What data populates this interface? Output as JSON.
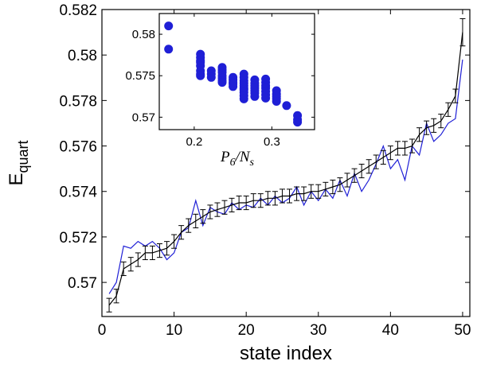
{
  "chart_data": [
    {
      "type": "line",
      "xlabel": "state index",
      "ylabel_main": "E",
      "ylabel_sub": "quart",
      "xlim": [
        0,
        51
      ],
      "ylim": [
        0.5685,
        0.582
      ],
      "xticks": [
        0,
        10,
        20,
        30,
        40,
        50
      ],
      "yticks": [
        0.57,
        0.572,
        0.574,
        0.576,
        0.578,
        0.58,
        0.582
      ],
      "colors": {
        "mean": "#000000",
        "sample": "#1f1fd6"
      },
      "x": [
        1,
        2,
        3,
        4,
        5,
        6,
        7,
        8,
        9,
        10,
        11,
        12,
        13,
        14,
        15,
        16,
        17,
        18,
        19,
        20,
        21,
        22,
        23,
        24,
        25,
        26,
        27,
        28,
        29,
        30,
        31,
        32,
        33,
        34,
        35,
        36,
        37,
        38,
        39,
        40,
        41,
        42,
        43,
        44,
        45,
        46,
        47,
        48,
        49,
        50
      ],
      "series": [
        {
          "role": "mean-with-errorbars",
          "values": [
            0.569,
            0.5694,
            0.5706,
            0.5708,
            0.571,
            0.5713,
            0.5713,
            0.5714,
            0.5715,
            0.5718,
            0.5722,
            0.5725,
            0.5727,
            0.5729,
            0.5731,
            0.5732,
            0.5733,
            0.5734,
            0.5735,
            0.5735,
            0.5736,
            0.5736,
            0.5737,
            0.5737,
            0.5738,
            0.5738,
            0.5739,
            0.5739,
            0.574,
            0.574,
            0.5741,
            0.5742,
            0.5743,
            0.5745,
            0.5747,
            0.5749,
            0.5751,
            0.5753,
            0.5755,
            0.5757,
            0.5759,
            0.5759,
            0.576,
            0.5765,
            0.5768,
            0.5769,
            0.5771,
            0.5776,
            0.5782,
            0.581
          ],
          "errors": [
            0.0003,
            0.0003,
            0.0003,
            0.0003,
            0.0003,
            0.0003,
            0.0003,
            0.0003,
            0.0003,
            0.0003,
            0.0003,
            0.0003,
            0.0003,
            0.0003,
            0.0003,
            0.0003,
            0.0003,
            0.0003,
            0.0003,
            0.0003,
            0.0003,
            0.0003,
            0.0003,
            0.0003,
            0.0003,
            0.0003,
            0.0003,
            0.0003,
            0.0003,
            0.0003,
            0.0003,
            0.0003,
            0.0003,
            0.0003,
            0.0003,
            0.0003,
            0.0003,
            0.0003,
            0.0003,
            0.0003,
            0.0003,
            0.0003,
            0.0003,
            0.0003,
            0.0003,
            0.0003,
            0.0003,
            0.0003,
            0.0003,
            0.0006
          ]
        },
        {
          "role": "sample",
          "values": [
            0.5695,
            0.57,
            0.5716,
            0.5715,
            0.5718,
            0.5716,
            0.5718,
            0.5715,
            0.571,
            0.5713,
            0.5722,
            0.5724,
            0.5736,
            0.5725,
            0.5733,
            0.5731,
            0.573,
            0.5735,
            0.5732,
            0.5734,
            0.5733,
            0.5737,
            0.5734,
            0.5738,
            0.5735,
            0.5737,
            0.5742,
            0.5734,
            0.574,
            0.5736,
            0.5741,
            0.5737,
            0.5745,
            0.5738,
            0.5748,
            0.574,
            0.5745,
            0.5752,
            0.576,
            0.575,
            0.5754,
            0.5745,
            0.576,
            0.5756,
            0.577,
            0.5762,
            0.5765,
            0.577,
            0.5772,
            0.5798
          ]
        }
      ]
    },
    {
      "type": "scatter",
      "xlabel_main": "P",
      "xlabel_sub": "6",
      "xlabel_rest": "/N",
      "xlabel_sub2": "s",
      "xlim": [
        0.155,
        0.355
      ],
      "ylim": [
        0.5685,
        0.5825
      ],
      "xticks": [
        0.2,
        0.3
      ],
      "yticks": [
        0.57,
        0.575,
        0.58
      ],
      "point_color": "#1f1fd6",
      "points": [
        [
          0.167,
          0.581
        ],
        [
          0.167,
          0.5782
        ],
        [
          0.208,
          0.5776
        ],
        [
          0.208,
          0.5772
        ],
        [
          0.208,
          0.5768
        ],
        [
          0.208,
          0.5766
        ],
        [
          0.208,
          0.5762
        ],
        [
          0.208,
          0.5756
        ],
        [
          0.208,
          0.5752
        ],
        [
          0.208,
          0.575
        ],
        [
          0.222,
          0.5756
        ],
        [
          0.222,
          0.5752
        ],
        [
          0.222,
          0.5748
        ],
        [
          0.236,
          0.576
        ],
        [
          0.236,
          0.5757
        ],
        [
          0.236,
          0.5754
        ],
        [
          0.236,
          0.575
        ],
        [
          0.236,
          0.5747
        ],
        [
          0.236,
          0.5744
        ],
        [
          0.236,
          0.5742
        ],
        [
          0.25,
          0.5748
        ],
        [
          0.25,
          0.5745
        ],
        [
          0.25,
          0.5742
        ],
        [
          0.25,
          0.574
        ],
        [
          0.25,
          0.5737
        ],
        [
          0.264,
          0.5752
        ],
        [
          0.264,
          0.5748
        ],
        [
          0.264,
          0.5744
        ],
        [
          0.264,
          0.5741
        ],
        [
          0.264,
          0.5738
        ],
        [
          0.264,
          0.5735
        ],
        [
          0.264,
          0.5733
        ],
        [
          0.264,
          0.573
        ],
        [
          0.264,
          0.5726
        ],
        [
          0.264,
          0.5722
        ],
        [
          0.278,
          0.5745
        ],
        [
          0.278,
          0.5741
        ],
        [
          0.278,
          0.5738
        ],
        [
          0.278,
          0.5735
        ],
        [
          0.278,
          0.5732
        ],
        [
          0.278,
          0.5729
        ],
        [
          0.278,
          0.5725
        ],
        [
          0.292,
          0.5746
        ],
        [
          0.292,
          0.5742
        ],
        [
          0.292,
          0.5738
        ],
        [
          0.292,
          0.5735
        ],
        [
          0.292,
          0.5731
        ],
        [
          0.292,
          0.5727
        ],
        [
          0.292,
          0.5723
        ],
        [
          0.306,
          0.5732
        ],
        [
          0.306,
          0.5728
        ],
        [
          0.306,
          0.5725
        ],
        [
          0.306,
          0.5722
        ],
        [
          0.306,
          0.5719
        ],
        [
          0.319,
          0.5714
        ],
        [
          0.333,
          0.5702
        ],
        [
          0.333,
          0.5697
        ],
        [
          0.333,
          0.5694
        ]
      ]
    }
  ]
}
